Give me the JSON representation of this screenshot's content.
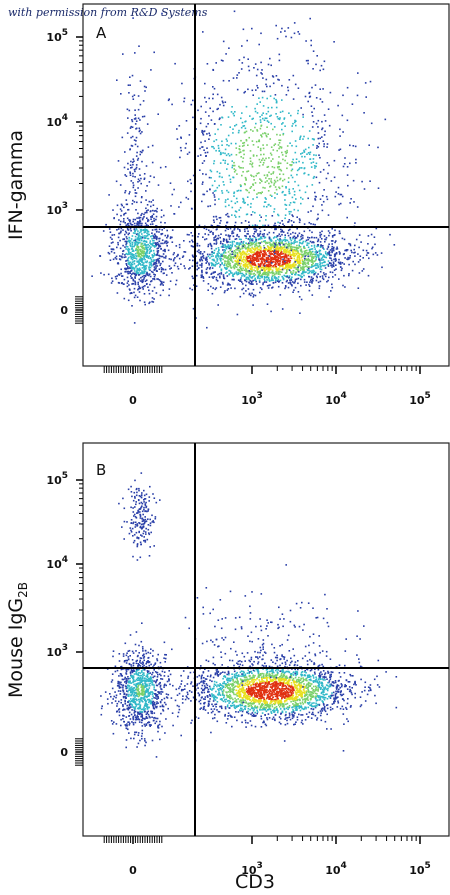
{
  "watermark": "with permission from R&D Systems",
  "x_axis_title": "CD3",
  "colors": {
    "low": "#2a3fa8",
    "mid": "#30b8c8",
    "high": "#e8e020",
    "peak": "#e03010"
  },
  "chart_data": [
    {
      "type": "scatter",
      "panel_label": "A",
      "ylabel": "IFN-gamma",
      "ylabel_sub": "",
      "x_scale": "biexponential",
      "y_scale": "biexponential",
      "x_ticks": [
        "0",
        "10^3",
        "10^4",
        "10^5"
      ],
      "y_ticks": [
        "0",
        "10^3",
        "10^4",
        "10^5"
      ],
      "gate": {
        "x": 300,
        "y": 700
      },
      "populations": [
        {
          "name": "CD3-negative",
          "x_center": 60,
          "y_center": 250,
          "count": 900
        },
        {
          "name": "CD3+ IFN-gamma-negative",
          "x_center": 1500,
          "y_center": 250,
          "count": 2200
        },
        {
          "name": "CD3+ IFN-gamma+",
          "x_center": 1800,
          "y_center": 3000,
          "count": 1100
        }
      ]
    },
    {
      "type": "scatter",
      "panel_label": "B",
      "ylabel": "Mouse IgG",
      "ylabel_sub": "2B",
      "x_scale": "biexponential",
      "y_scale": "biexponential",
      "x_ticks": [
        "0",
        "10^3",
        "10^4",
        "10^5"
      ],
      "y_ticks": [
        "0",
        "10^3",
        "10^4",
        "10^5"
      ],
      "gate": {
        "x": 300,
        "y": 700
      },
      "populations": [
        {
          "name": "CD3-negative",
          "x_center": 60,
          "y_center": 250,
          "count": 900
        },
        {
          "name": "CD3-negative high",
          "x_center": 70,
          "y_center": 35000,
          "count": 180
        },
        {
          "name": "CD3+",
          "x_center": 1500,
          "y_center": 250,
          "count": 2300
        }
      ]
    }
  ]
}
